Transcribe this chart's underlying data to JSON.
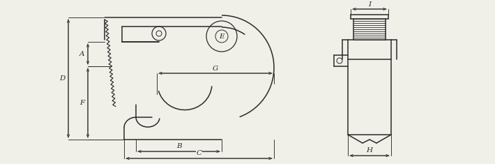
{
  "bg_color": "#f0efe8",
  "line_color": "#2a2a2a",
  "dim_color": "#2a2a2a",
  "lw_body": 1.1,
  "lw_dim": 0.65,
  "fs": 7.5,
  "labels": [
    "A",
    "B",
    "C",
    "D",
    "E",
    "F",
    "G",
    "H",
    "I"
  ]
}
